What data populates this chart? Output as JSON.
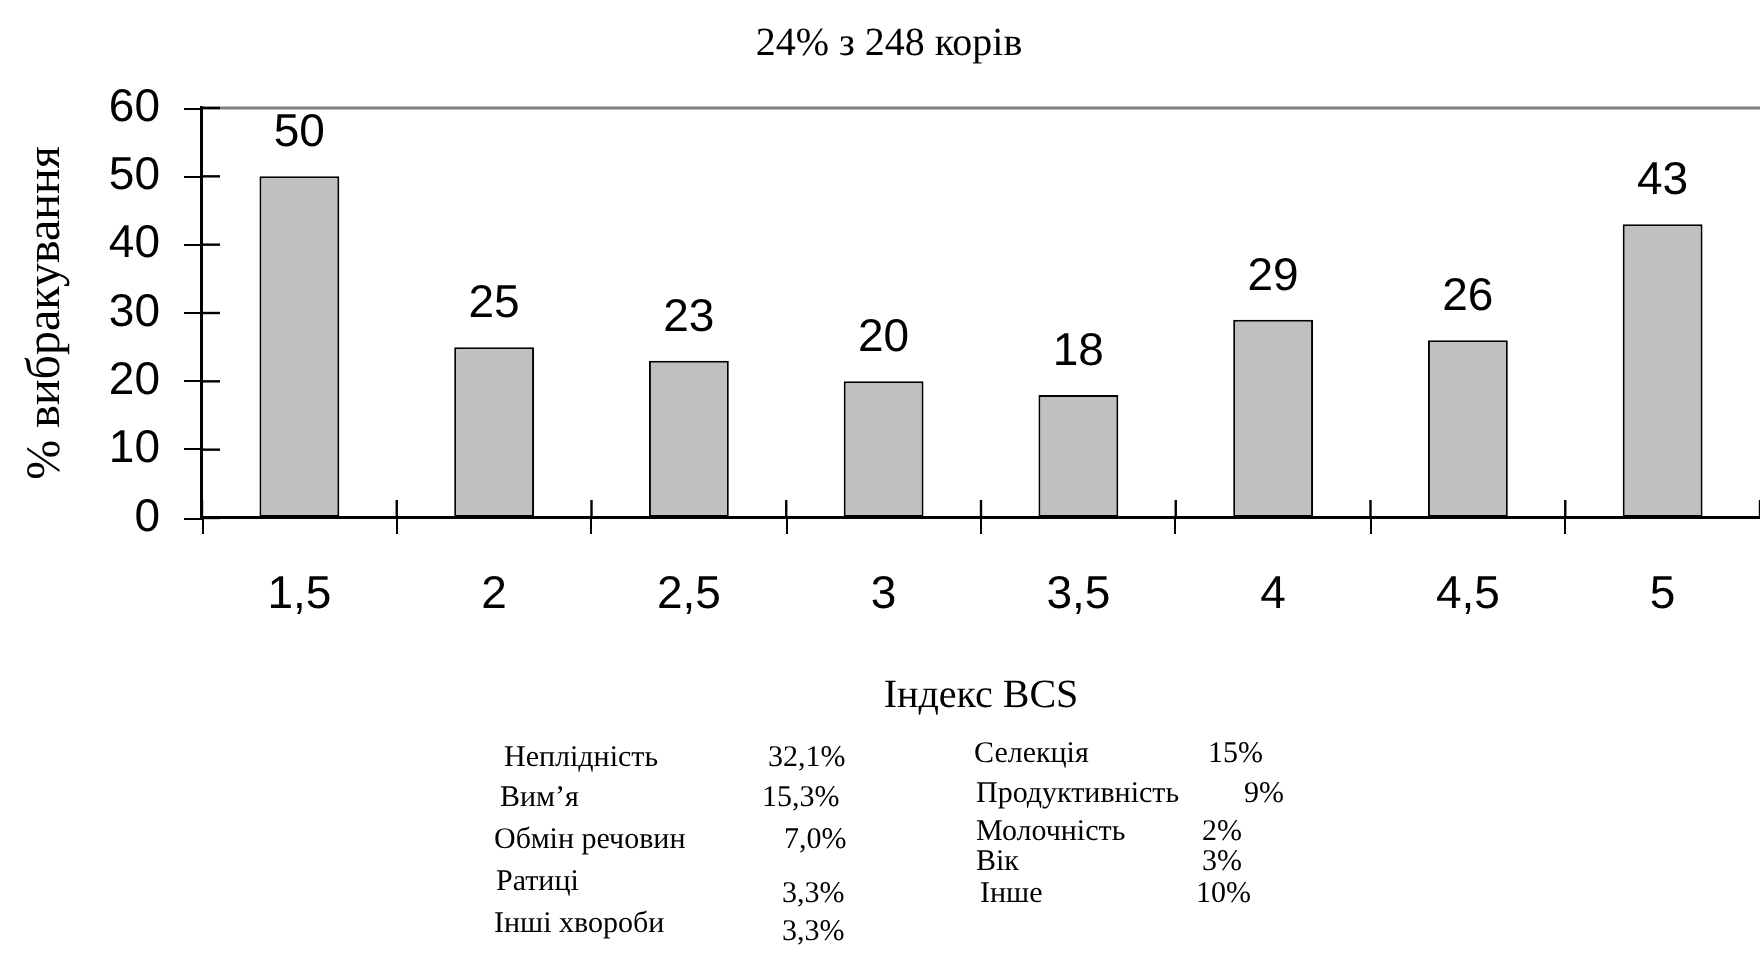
{
  "chart_data": {
    "type": "bar",
    "title": "24% з 248 корів",
    "xlabel": "Індекс BCS",
    "ylabel": "% вибракування",
    "categories": [
      "1,5",
      "2",
      "2,5",
      "3",
      "3,5",
      "4",
      "4,5",
      "5"
    ],
    "values": [
      50,
      25,
      23,
      20,
      18,
      29,
      26,
      43
    ],
    "color": "#c0c0c0",
    "ylim": [
      0,
      60
    ],
    "yticks": [
      0,
      10,
      20,
      30,
      40,
      50,
      60
    ],
    "data_labels": true,
    "legend": false,
    "grid": false,
    "annotations": [
      "Неплідність",
      "32,1%",
      "Вим’я",
      "15,3%",
      "Обмін речовин",
      "7,0%",
      "Ратиці",
      "3,3%",
      "Інші хвороби",
      "3,3%",
      "Селекція",
      "15%",
      "Продуктивність",
      "9%",
      "Молочність",
      "2%",
      "Вік",
      "3%",
      "Інше",
      "10%"
    ]
  }
}
